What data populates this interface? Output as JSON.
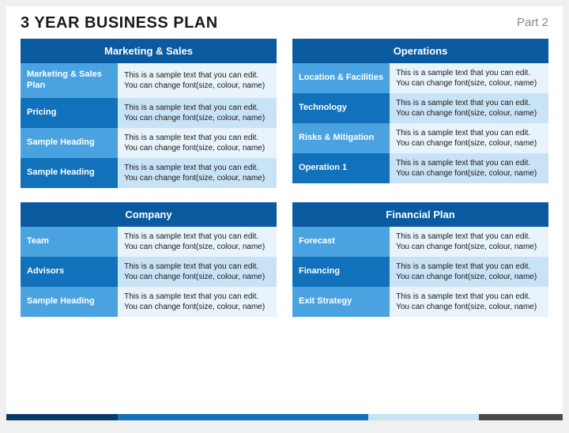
{
  "header": {
    "title": "3 YEAR BUSINESS PLAN",
    "part": "Part 2"
  },
  "colors": {
    "header_bg": "#0a5aa0",
    "row_label_primary": "#4aa3e0",
    "row_label_secondary": "#1171ba",
    "row_text_primary": "#e8f3fb",
    "row_text_secondary": "#c9e3f6"
  },
  "sections": [
    {
      "title": "Marketing & Sales",
      "rows": [
        {
          "label": "Marketing & Sales Plan",
          "text": "This is a sample text that you can edit. You can change font(size, colour, name)"
        },
        {
          "label": "Pricing",
          "text": "This is a sample text that you can edit. You can change font(size, colour, name)"
        },
        {
          "label": "Sample Heading",
          "text": "This is a sample text that you can edit. You can change font(size, colour, name)"
        },
        {
          "label": "Sample Heading",
          "text": "This is a sample text that you can edit. You can change font(size, colour, name)"
        }
      ]
    },
    {
      "title": "Operations",
      "rows": [
        {
          "label": "Location & Facilities",
          "text": "This is a sample text that you can edit. You can change font(size, colour, name)"
        },
        {
          "label": "Technology",
          "text": "This is a sample text that you can edit. You can change font(size, colour, name)"
        },
        {
          "label": "Risks & Mitigation",
          "text": "This is a sample text that you can edit. You can change font(size, colour, name)"
        },
        {
          "label": "Operation 1",
          "text": "This is a sample text that you can edit. You can change font(size, colour, name)"
        }
      ]
    },
    {
      "title": "Company",
      "rows": [
        {
          "label": "Team",
          "text": "This is a sample text that you can edit. You can change font(size, colour, name)"
        },
        {
          "label": "Advisors",
          "text": "This is a sample text that you can edit. You can change font(size, colour, name)"
        },
        {
          "label": "Sample Heading",
          "text": "This is a sample text that you can edit. You can change font(size, colour, name)"
        }
      ]
    },
    {
      "title": "Financial Plan",
      "rows": [
        {
          "label": "Forecast",
          "text": "This is a sample text that you can edit. You can change font(size, colour, name)"
        },
        {
          "label": "Financing",
          "text": "This is a sample text that you can edit. You can change font(size, colour, name)"
        },
        {
          "label": "Exit Strategy",
          "text": "This is a sample text that you can edit. You can change font(size, colour, name)"
        }
      ]
    }
  ]
}
